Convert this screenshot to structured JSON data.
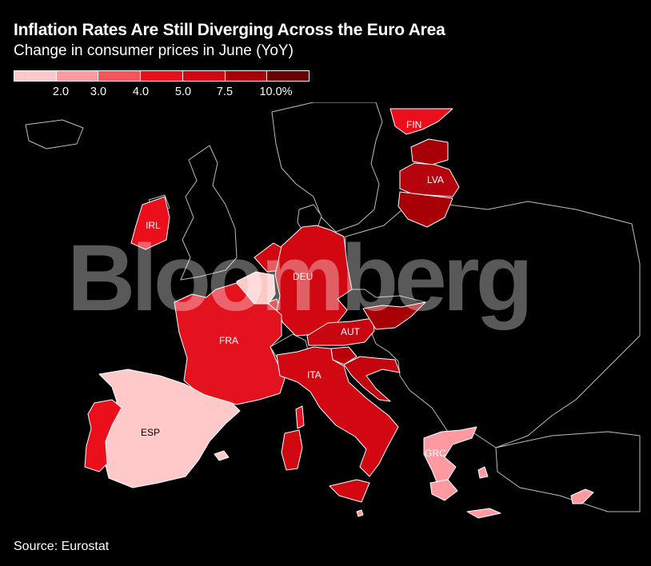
{
  "header": {
    "title": "Inflation Rates Are Still Diverging Across the Euro Area",
    "subtitle": "Change in consumer prices in June (YoY)"
  },
  "legend": {
    "bins": [
      {
        "color": "#ffc9c9"
      },
      {
        "color": "#ff9aa0"
      },
      {
        "color": "#f6555d"
      },
      {
        "color": "#eb0f1c"
      },
      {
        "color": "#d10812"
      },
      {
        "color": "#a80007"
      },
      {
        "color": "#6b0004"
      }
    ],
    "ticks": [
      "2.0",
      "3.0",
      "4.0",
      "5.0",
      "7.5",
      "10.0%"
    ]
  },
  "map": {
    "watermark": "Bloomberg",
    "labels": {
      "FIN": "FIN",
      "LVA": "LVA",
      "IRL": "IRL",
      "DEU": "DEU",
      "FRA": "FRA",
      "AUT": "AUT",
      "ITA": "ITA",
      "ESP": "ESP",
      "GRC": "GRC"
    },
    "colors": {
      "ESP": "#ffc9c9",
      "PRT": "#eb0f1c",
      "FRA": "#e4121e",
      "IRL": "#eb0f1c",
      "BEL": "#ffc9c9",
      "NLD": "#d10812",
      "LUX": "#d10812",
      "DEU": "#d10812",
      "AUT": "#c80611",
      "ITA": "#d10812",
      "SVN": "#b8000a",
      "SVK": "#a80007",
      "HRV": "#c4040f",
      "FIN": "#eb0f1c",
      "EST": "#a80007",
      "LVA": "#b5040d",
      "LTU": "#a80007",
      "GRC": "#ff9aa0",
      "CYP": "#ff9aa0",
      "MLT": "#ff9aa0",
      "land": "#000000",
      "border": "#bdbdbd"
    }
  },
  "footer": {
    "source": "Source: Eurostat"
  }
}
